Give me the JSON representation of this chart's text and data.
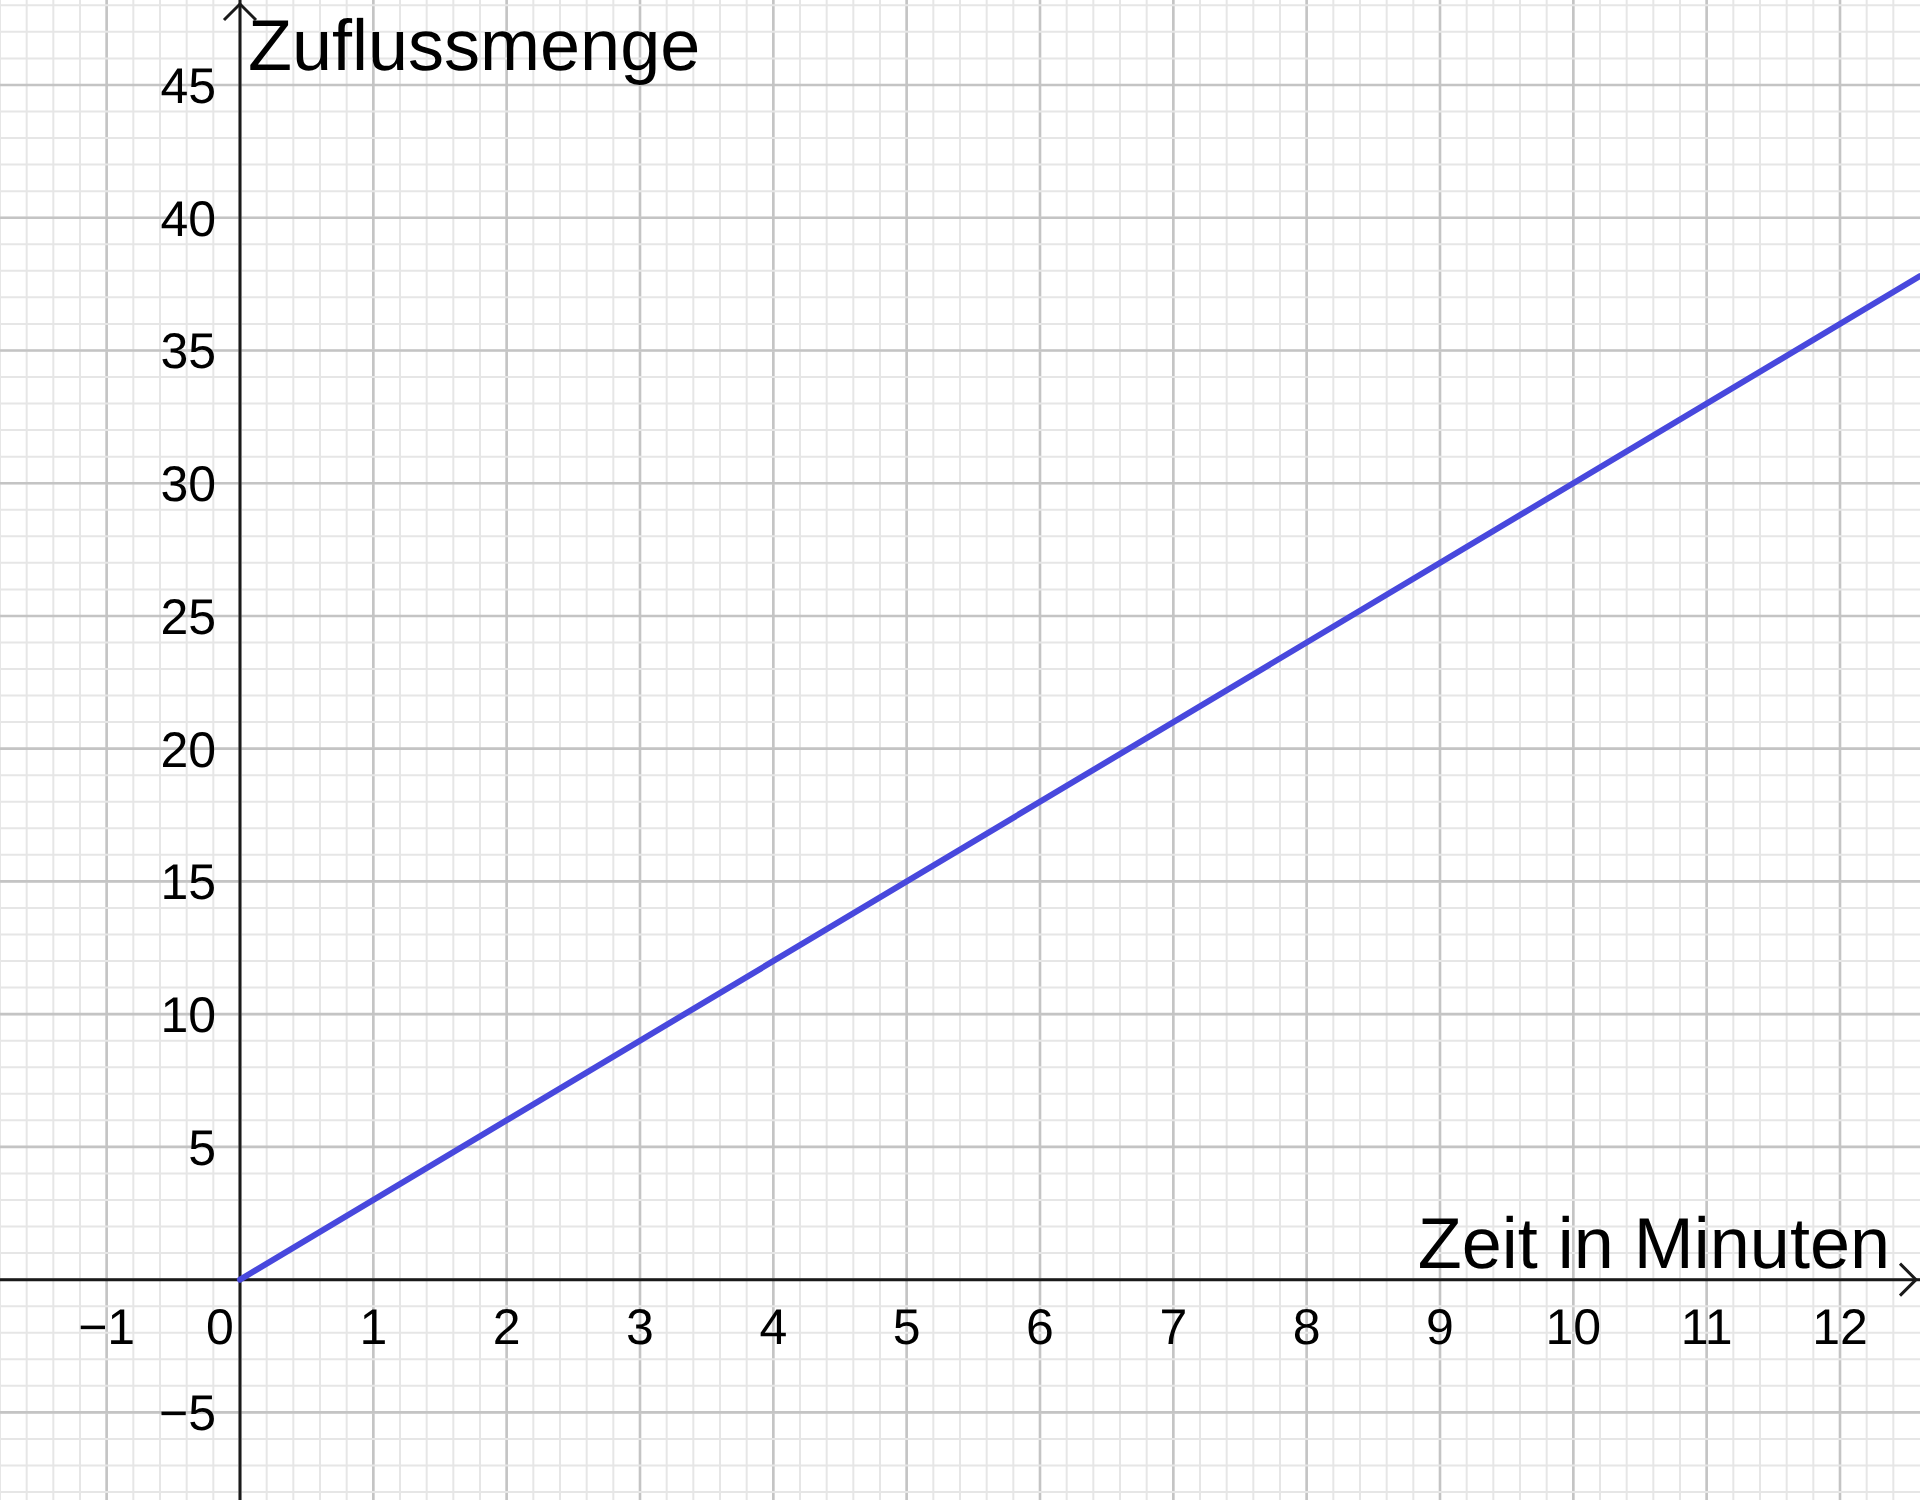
{
  "chart_data": {
    "type": "line",
    "xlabel": "Zeit in Minuten",
    "ylabel": "Zuflussmenge",
    "x": [
      0,
      12.6
    ],
    "values": [
      0,
      37.8
    ],
    "color": "#4848dd",
    "line_style": "solid",
    "xlim": [
      -1.8,
      12.6
    ],
    "ylim": [
      -8.3,
      48.2
    ],
    "xticks": [
      {
        "value": -1,
        "label": "−1"
      },
      0,
      1,
      2,
      3,
      4,
      5,
      6,
      7,
      8,
      9,
      10,
      11,
      12
    ],
    "yticks": [
      {
        "value": -5,
        "label": "−5"
      },
      5,
      10,
      15,
      20,
      25,
      30,
      35,
      40,
      45
    ],
    "grid": true
  }
}
